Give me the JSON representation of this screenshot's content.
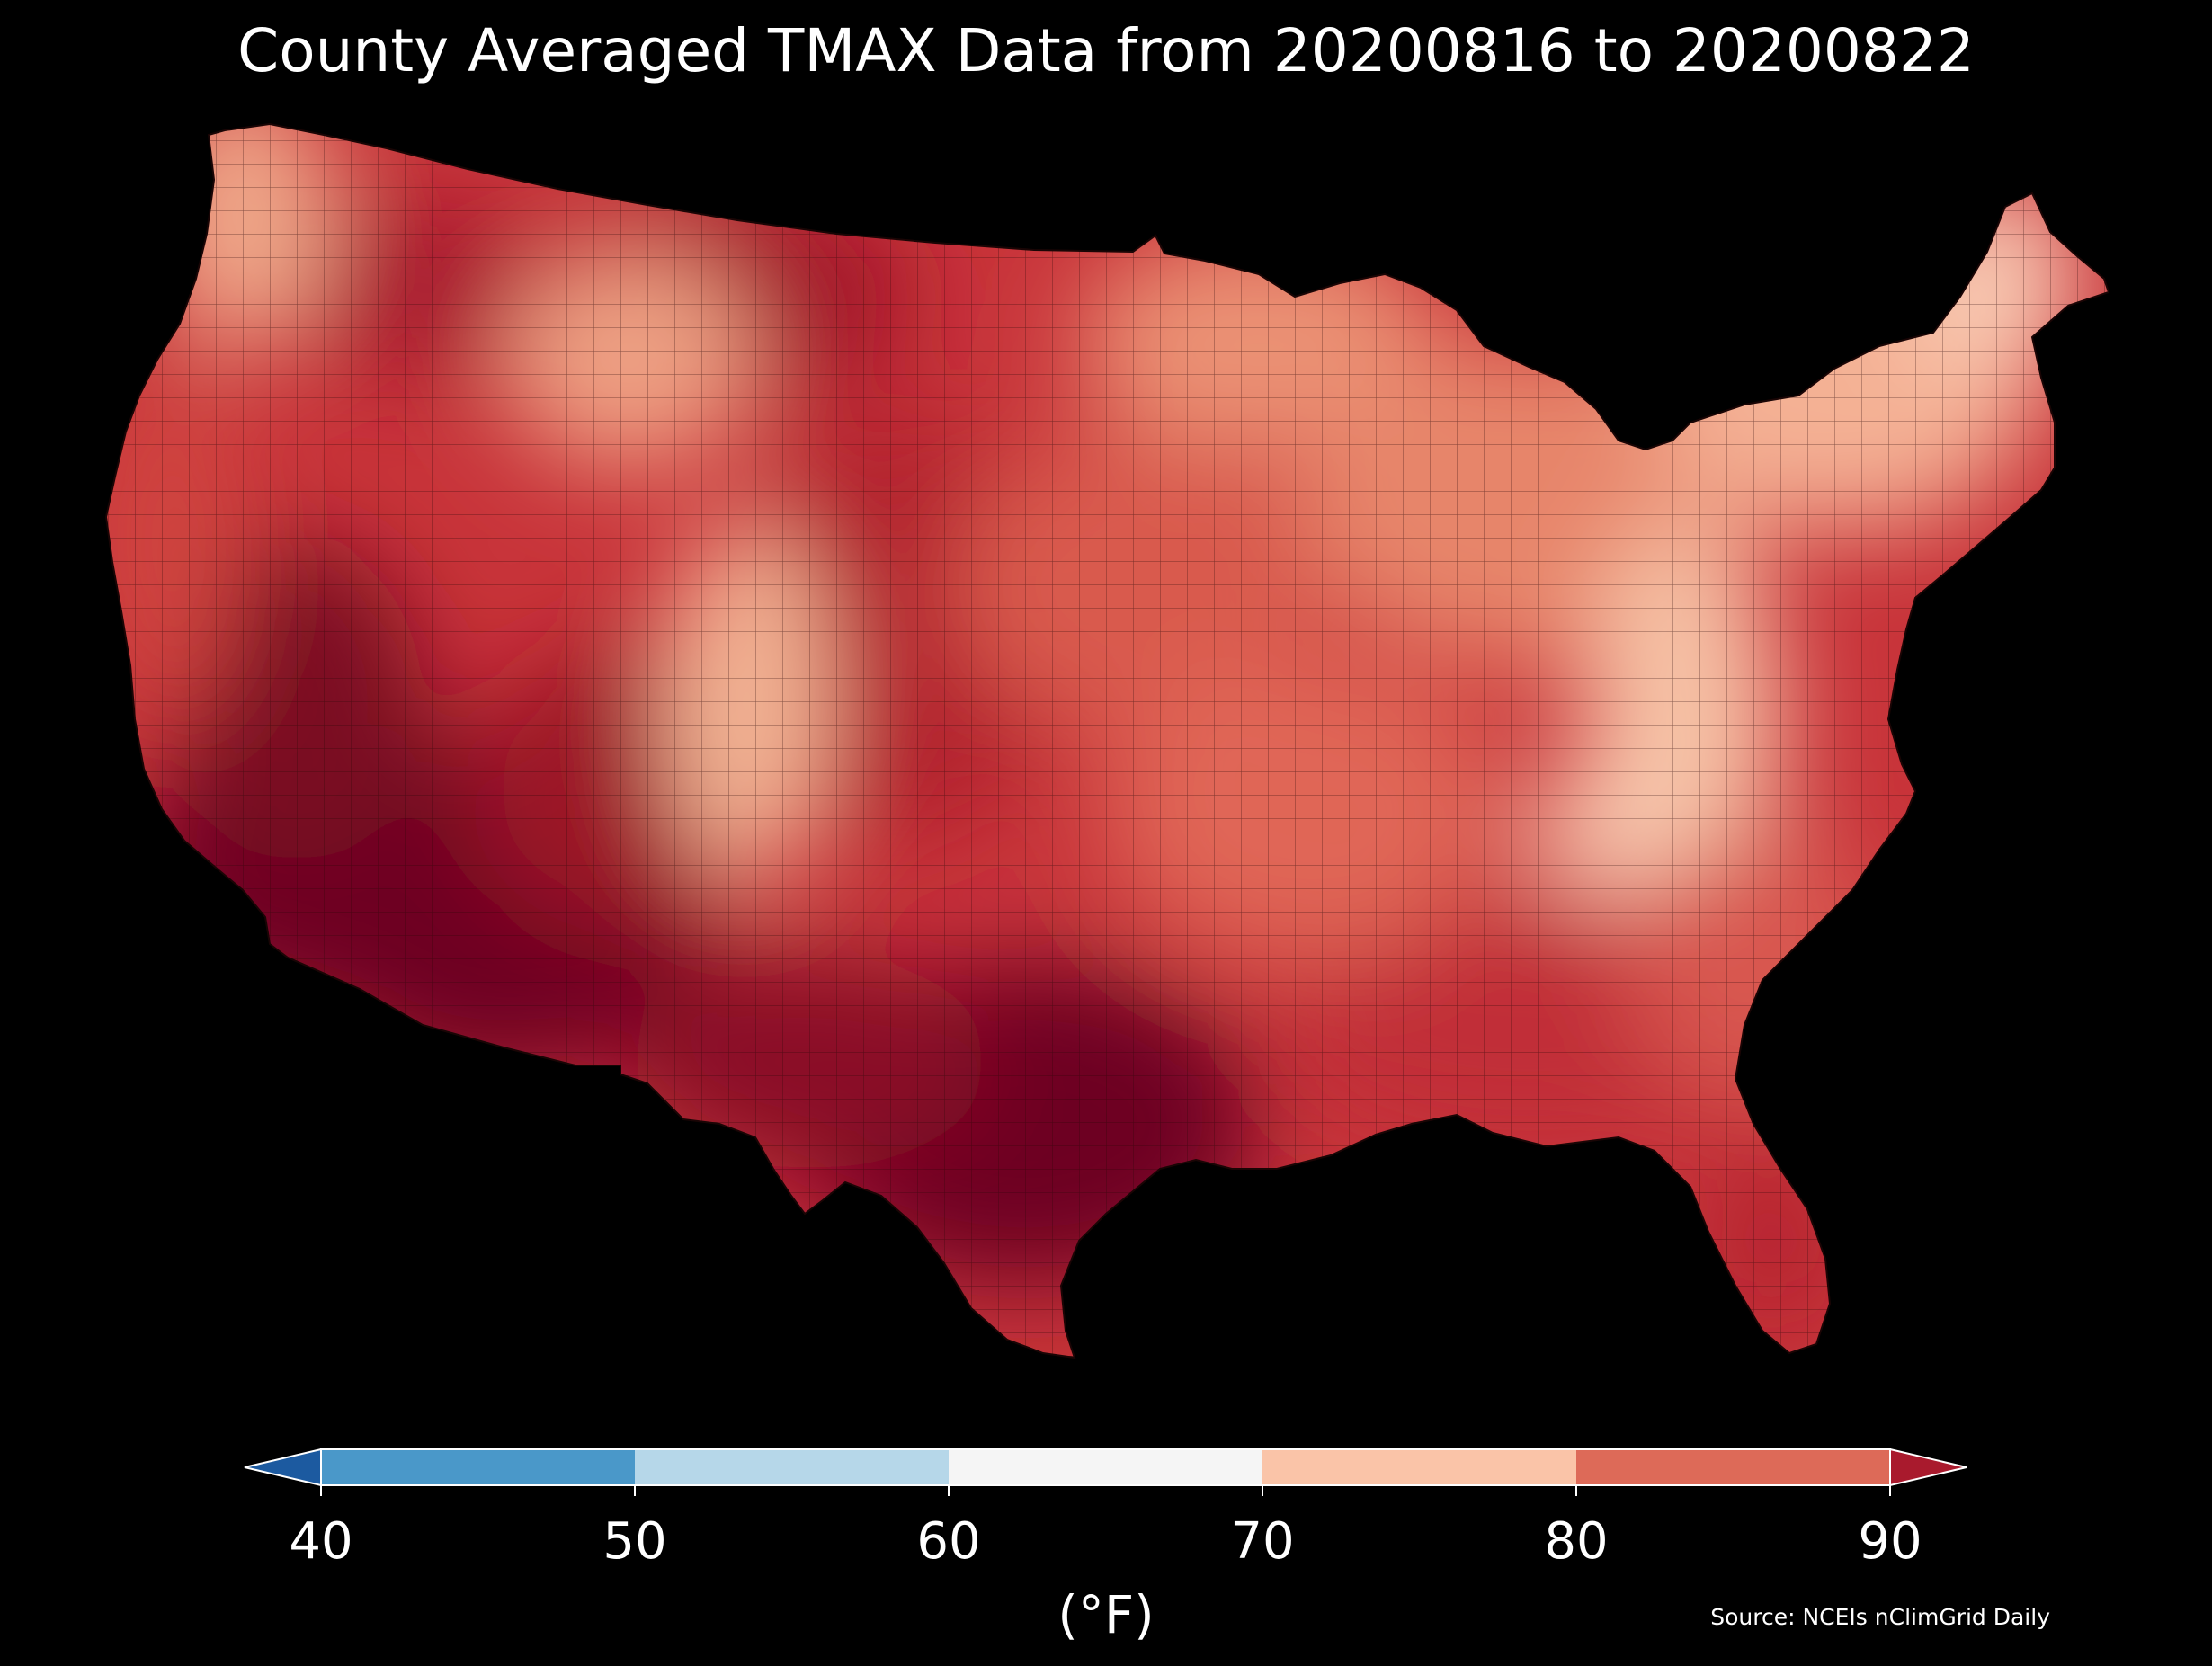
{
  "title": "County Averaged TMAX Data from 20200816 to 20200822",
  "colorbar": {
    "ticks": [
      "40",
      "50",
      "60",
      "70",
      "80",
      "90"
    ],
    "unit": "(°F)",
    "extend": "both",
    "bins": [
      {
        "range": "<40",
        "color": "#1c5aa0"
      },
      {
        "range": "40-50",
        "color": "#4a98c9"
      },
      {
        "range": "50-60",
        "color": "#b6d7e9"
      },
      {
        "range": "60-70",
        "color": "#f5f5f5"
      },
      {
        "range": "70-80",
        "color": "#fac4a8"
      },
      {
        "range": "80-90",
        "color": "#dd6a58"
      },
      {
        "range": ">90",
        "color": "#a91a2d"
      }
    ]
  },
  "source": "Source: NCEIs nClimGrid Daily",
  "map": {
    "region": "Contiguous United States, county-level choropleth",
    "background_color": "#000000",
    "border_color": "#3a1010"
  }
}
